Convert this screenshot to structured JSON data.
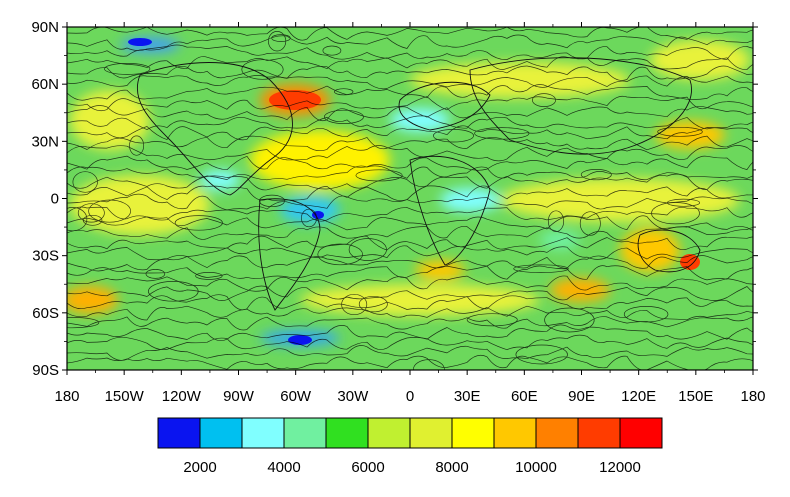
{
  "map": {
    "lat_labels": [
      "90N",
      "60N",
      "30N",
      "0",
      "30S",
      "60S",
      "90S"
    ],
    "lat_values": [
      90,
      60,
      30,
      0,
      -30,
      -60,
      -90
    ],
    "lon_labels": [
      "180",
      "150W",
      "120W",
      "90W",
      "60W",
      "30W",
      "0",
      "30E",
      "60E",
      "90E",
      "120E",
      "150E",
      "180"
    ],
    "lon_values": [
      -180,
      -150,
      -120,
      -90,
      -60,
      -30,
      0,
      30,
      60,
      90,
      120,
      150,
      180
    ]
  },
  "colorbar": {
    "levels": [
      1000,
      2000,
      3000,
      4000,
      5000,
      6000,
      7000,
      8000,
      9000,
      10000,
      11000,
      12000,
      13000
    ],
    "colors": [
      "#0a14f0",
      "#00c0f0",
      "#80ffff",
      "#70f0a0",
      "#30e020",
      "#c0f030",
      "#e0f030",
      "#ffff00",
      "#ffc800",
      "#ff8000",
      "#ff3c00",
      "#ff0000"
    ],
    "label_values": [
      2000,
      4000,
      6000,
      8000,
      10000,
      12000
    ],
    "labels": [
      "2000",
      "4000",
      "6000",
      "8000",
      "10000",
      "12000"
    ]
  }
}
